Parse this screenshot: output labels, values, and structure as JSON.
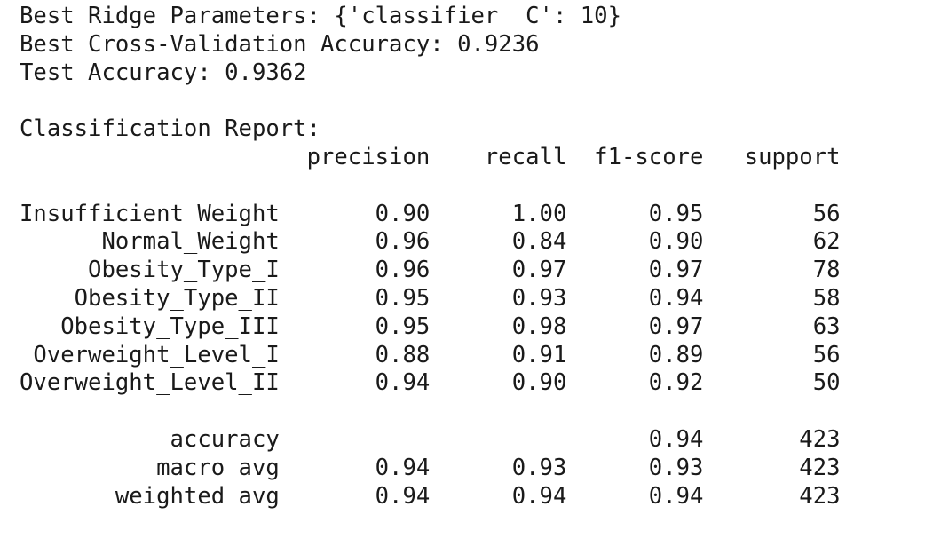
{
  "output": {
    "lines": [
      "Best Ridge Parameters: {'classifier__C': 10}",
      "Best Cross-Validation Accuracy: 0.9236",
      "Test Accuracy: 0.9362",
      "",
      "Classification Report:",
      "                     precision    recall  f1-score   support",
      "",
      "Insufficient_Weight       0.90      1.00      0.95        56",
      "      Normal_Weight       0.96      0.84      0.90        62",
      "     Obesity_Type_I       0.96      0.97      0.97        78",
      "    Obesity_Type_II       0.95      0.93      0.94        58",
      "   Obesity_Type_III       0.95      0.98      0.97        63",
      " Overweight_Level_I       0.88      0.91      0.89        56",
      "Overweight_Level_II       0.94      0.90      0.92        50",
      "",
      "           accuracy                           0.94       423",
      "          macro avg       0.94      0.93      0.93       423",
      "       weighted avg       0.94      0.94      0.94       423"
    ]
  }
}
